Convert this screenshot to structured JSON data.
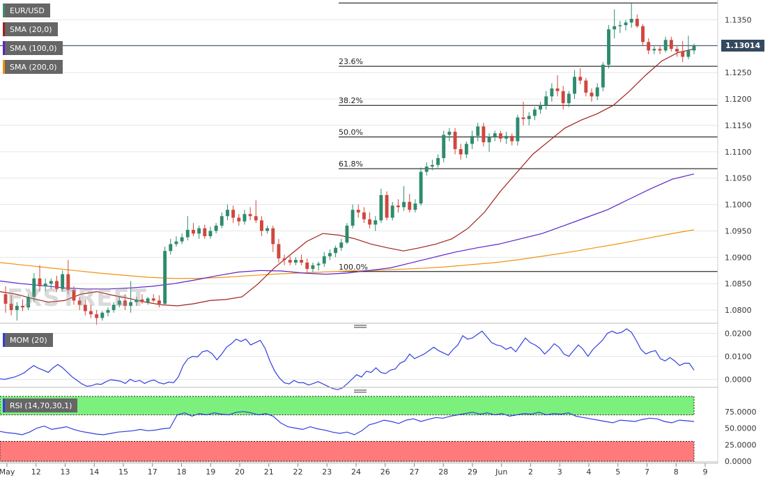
{
  "symbol": "EUR/USD",
  "watermark": "FXSTREET",
  "current_price_label": "1.13014",
  "indicators": {
    "sma20": {
      "label": "SMA (20,0)",
      "color": "#a0201b"
    },
    "sma100": {
      "label": "SMA (100,0)",
      "color": "#5b22c9"
    },
    "sma200": {
      "label": "SMA (200,0)",
      "color": "#f2910e"
    },
    "mom": {
      "label": "MOM (20)",
      "color": "#2f3fe0"
    },
    "rsi": {
      "label": "RSI (14,70,30,1)",
      "color": "#2f3fe0"
    }
  },
  "colors": {
    "up": "#2e8b6e",
    "down": "#d0473d",
    "rsi_overbought_zone": "#7cf07c",
    "rsi_oversold_zone": "#ff7b7b"
  },
  "x_axis_labels": [
    "May",
    "12",
    "13",
    "14",
    "15",
    "17",
    "18",
    "19",
    "20",
    "21",
    "22",
    "23",
    "24",
    "26",
    "27",
    "28",
    "29",
    "Jun",
    "2",
    "3",
    "4",
    "5",
    "7",
    "8",
    "9"
  ],
  "chart_data": [
    {
      "type": "candlestick",
      "title": "EUR/USD",
      "y_ticks": [
        "1.1350",
        "1.1300",
        "1.1250",
        "1.1200",
        "1.1150",
        "1.1100",
        "1.1050",
        "1.1000",
        "1.0950",
        "1.0900",
        "1.0850",
        "1.0800"
      ],
      "ylim": [
        1.0775,
        1.1385
      ],
      "fibonacci": [
        {
          "label": "23.6%",
          "value": 1.1262
        },
        {
          "label": "38.2%",
          "value": 1.1188
        },
        {
          "label": "50.0%",
          "value": 1.1128
        },
        {
          "label": "61.8%",
          "value": 1.1068
        },
        {
          "label": "100.0%",
          "value": 1.0873
        }
      ],
      "fib_top": 1.1382,
      "last_price": 1.13014,
      "ohlc": [
        [
          1.083,
          1.0845,
          1.0795,
          1.0812
        ],
        [
          1.0812,
          1.0828,
          1.079,
          1.08
        ],
        [
          1.08,
          1.0815,
          1.078,
          1.0808
        ],
        [
          1.0808,
          1.082,
          1.0798,
          1.0805
        ],
        [
          1.0805,
          1.083,
          1.08,
          1.0825
        ],
        [
          1.0825,
          1.087,
          1.0815,
          1.086
        ],
        [
          1.086,
          1.0885,
          1.0835,
          1.0845
        ],
        [
          1.0845,
          1.086,
          1.0835,
          1.085
        ],
        [
          1.085,
          1.086,
          1.084,
          1.0855
        ],
        [
          1.0855,
          1.0865,
          1.0835,
          1.084
        ],
        [
          1.084,
          1.0875,
          1.0835,
          1.0868
        ],
        [
          1.0868,
          1.0895,
          1.083,
          1.0838
        ],
        [
          1.0838,
          1.0845,
          1.081,
          1.0818
        ],
        [
          1.0818,
          1.0825,
          1.08,
          1.081
        ],
        [
          1.081,
          1.082,
          1.079,
          1.0798
        ],
        [
          1.0798,
          1.081,
          1.0785,
          1.0792
        ],
        [
          1.0792,
          1.08,
          1.0772,
          1.0785
        ],
        [
          1.0785,
          1.0798,
          1.078,
          1.0795
        ],
        [
          1.0795,
          1.0805,
          1.0788,
          1.08
        ],
        [
          1.08,
          1.0815,
          1.0795,
          1.081
        ],
        [
          1.081,
          1.0825,
          1.0805,
          1.0818
        ],
        [
          1.0818,
          1.083,
          1.08,
          1.0808
        ],
        [
          1.0808,
          1.0855,
          1.0795,
          1.0815
        ],
        [
          1.0815,
          1.0825,
          1.0808,
          1.082
        ],
        [
          1.082,
          1.083,
          1.0812,
          1.0815
        ],
        [
          1.0815,
          1.0825,
          1.081,
          1.0822
        ],
        [
          1.0822,
          1.083,
          1.0815,
          1.0818
        ],
        [
          1.0818,
          1.0828,
          1.0805,
          1.0812
        ],
        [
          1.0812,
          1.092,
          1.081,
          1.0912
        ],
        [
          1.0912,
          1.0935,
          1.0905,
          1.0925
        ],
        [
          1.0925,
          1.094,
          1.092,
          1.093
        ],
        [
          1.093,
          1.0945,
          1.0925,
          1.0938
        ],
        [
          1.0938,
          1.0978,
          1.0932,
          1.0952
        ],
        [
          1.0952,
          1.0965,
          1.094,
          1.0945
        ],
        [
          1.0945,
          1.096,
          1.0935,
          1.0955
        ],
        [
          1.0955,
          1.0962,
          1.0935,
          1.094
        ],
        [
          1.094,
          1.0958,
          1.0935,
          1.095
        ],
        [
          1.095,
          1.0965,
          1.0945,
          1.096
        ],
        [
          1.096,
          1.0985,
          1.0955,
          1.0978
        ],
        [
          1.0978,
          1.1,
          1.097,
          1.099
        ],
        [
          1.099,
          1.0998,
          1.0965,
          1.0975
        ],
        [
          1.0975,
          1.0982,
          1.096,
          1.0968
        ],
        [
          1.0968,
          1.099,
          1.0962,
          1.0982
        ],
        [
          1.0982,
          1.0995,
          1.097,
          1.0978
        ],
        [
          1.0978,
          1.1008,
          1.0965,
          1.097
        ],
        [
          1.097,
          1.0978,
          1.094,
          1.095
        ],
        [
          1.095,
          1.096,
          1.0945,
          1.0955
        ],
        [
          1.0955,
          1.096,
          1.091,
          1.0925
        ],
        [
          1.0925,
          1.0935,
          1.089,
          1.0898
        ],
        [
          1.0898,
          1.0905,
          1.0885,
          1.0895
        ],
        [
          1.0895,
          1.0902,
          1.0885,
          1.089
        ],
        [
          1.089,
          1.09,
          1.0885,
          1.0895
        ],
        [
          1.0895,
          1.0905,
          1.0885,
          1.089
        ],
        [
          1.089,
          1.0898,
          1.0872,
          1.0878
        ],
        [
          1.0878,
          1.089,
          1.0872,
          1.0885
        ],
        [
          1.0885,
          1.0892,
          1.0875,
          1.0888
        ],
        [
          1.0888,
          1.091,
          1.0882,
          1.0902
        ],
        [
          1.0902,
          1.0915,
          1.0895,
          1.0908
        ],
        [
          1.0908,
          1.0922,
          1.09,
          1.0918
        ],
        [
          1.0918,
          1.0935,
          1.0912,
          1.0928
        ],
        [
          1.0928,
          1.0965,
          1.0925,
          1.096
        ],
        [
          1.096,
          1.1,
          1.0955,
          1.099
        ],
        [
          1.099,
          1.1,
          1.0975,
          1.0985
        ],
        [
          1.0985,
          1.0995,
          1.0965,
          1.0972
        ],
        [
          1.0972,
          1.0985,
          1.0955,
          1.0962
        ],
        [
          1.0962,
          1.0978,
          1.095,
          1.097
        ],
        [
          1.097,
          1.103,
          1.0965,
          1.1018
        ],
        [
          1.1018,
          1.1025,
          1.097,
          1.0975
        ],
        [
          1.0975,
          1.1005,
          1.097,
          1.0998
        ],
        [
          1.0998,
          1.101,
          1.0985,
          1.0995
        ],
        [
          1.0995,
          1.1035,
          1.0988,
          1.1005
        ],
        [
          1.1005,
          1.102,
          1.0985,
          1.099
        ],
        [
          1.099,
          1.101,
          1.0985,
          1.1002
        ],
        [
          1.1002,
          1.107,
          1.0998,
          1.1062
        ],
        [
          1.1062,
          1.108,
          1.1055,
          1.1072
        ],
        [
          1.1072,
          1.1085,
          1.1065,
          1.1075
        ],
        [
          1.1075,
          1.1095,
          1.107,
          1.1088
        ],
        [
          1.1088,
          1.114,
          1.108,
          1.1132
        ],
        [
          1.1132,
          1.1145,
          1.112,
          1.1138
        ],
        [
          1.1138,
          1.1145,
          1.1095,
          1.1105
        ],
        [
          1.1105,
          1.1115,
          1.1085,
          1.1095
        ],
        [
          1.1095,
          1.112,
          1.1088,
          1.1115
        ],
        [
          1.1115,
          1.114,
          1.1105,
          1.113
        ],
        [
          1.113,
          1.1155,
          1.112,
          1.1148
        ],
        [
          1.1148,
          1.1155,
          1.111,
          1.1118
        ],
        [
          1.1118,
          1.1135,
          1.11,
          1.1128
        ],
        [
          1.1128,
          1.114,
          1.112,
          1.1135
        ],
        [
          1.1135,
          1.114,
          1.1118,
          1.1125
        ],
        [
          1.1125,
          1.1138,
          1.1115,
          1.113
        ],
        [
          1.113,
          1.1135,
          1.1112,
          1.112
        ],
        [
          1.112,
          1.117,
          1.1112,
          1.1165
        ],
        [
          1.1165,
          1.1195,
          1.115,
          1.1162
        ],
        [
          1.1162,
          1.1175,
          1.115,
          1.1168
        ],
        [
          1.1168,
          1.1185,
          1.116,
          1.118
        ],
        [
          1.118,
          1.1195,
          1.1172,
          1.1188
        ],
        [
          1.1188,
          1.1215,
          1.118,
          1.1205
        ],
        [
          1.1205,
          1.123,
          1.1195,
          1.122
        ],
        [
          1.122,
          1.1245,
          1.1205,
          1.1215
        ],
        [
          1.1215,
          1.1225,
          1.118,
          1.1192
        ],
        [
          1.1192,
          1.1215,
          1.1185,
          1.121
        ],
        [
          1.121,
          1.1255,
          1.12,
          1.1242
        ],
        [
          1.1242,
          1.1258,
          1.1228,
          1.1235
        ],
        [
          1.1235,
          1.124,
          1.1205,
          1.1212
        ],
        [
          1.1212,
          1.122,
          1.1195,
          1.1205
        ],
        [
          1.1205,
          1.123,
          1.1198,
          1.1222
        ],
        [
          1.1222,
          1.127,
          1.1215,
          1.1265
        ],
        [
          1.1265,
          1.134,
          1.1258,
          1.1332
        ],
        [
          1.1332,
          1.137,
          1.1315,
          1.1338
        ],
        [
          1.1338,
          1.1348,
          1.1325,
          1.134
        ],
        [
          1.134,
          1.135,
          1.133,
          1.1345
        ],
        [
          1.1345,
          1.1382,
          1.1335,
          1.1352
        ],
        [
          1.1352,
          1.136,
          1.1335,
          1.1338
        ],
        [
          1.1338,
          1.1342,
          1.1302,
          1.1308
        ],
        [
          1.1308,
          1.1315,
          1.1285,
          1.1292
        ],
        [
          1.1292,
          1.13,
          1.1285,
          1.1295
        ],
        [
          1.1295,
          1.13,
          1.1285,
          1.1292
        ],
        [
          1.1292,
          1.1318,
          1.1288,
          1.1312
        ],
        [
          1.1312,
          1.1318,
          1.129,
          1.1295
        ],
        [
          1.1295,
          1.13,
          1.128,
          1.129
        ],
        [
          1.129,
          1.131,
          1.127,
          1.128
        ],
        [
          1.128,
          1.132,
          1.1275,
          1.1292
        ],
        [
          1.1292,
          1.1305,
          1.1285,
          1.1301
        ]
      ],
      "sma20": [
        1.0835,
        1.083,
        1.0822,
        1.0815,
        1.0818,
        1.083,
        1.0835,
        1.0828,
        1.0822,
        1.0815,
        1.081,
        1.0808,
        1.0812,
        1.0818,
        1.082,
        1.0825,
        1.085,
        1.088,
        1.0905,
        1.093,
        1.0945,
        1.0942,
        1.0935,
        1.0925,
        1.0918,
        1.0912,
        1.0918,
        1.0925,
        1.0935,
        1.0955,
        1.0985,
        1.1025,
        1.106,
        1.1095,
        1.112,
        1.1145,
        1.116,
        1.1172,
        1.1188,
        1.1215,
        1.1245,
        1.1272,
        1.1288,
        1.1295
      ],
      "sma100": [
        1.0855,
        1.085,
        1.0846,
        1.0842,
        1.084,
        1.084,
        1.0842,
        1.0845,
        1.085,
        1.0857,
        1.0865,
        1.0872,
        1.0875,
        1.0874,
        1.087,
        1.0868,
        1.087,
        1.0875,
        1.088,
        1.089,
        1.09,
        1.091,
        1.0918,
        1.0925,
        1.0935,
        1.0945,
        1.096,
        1.0975,
        1.099,
        1.101,
        1.103,
        1.1048,
        1.1058
      ],
      "sma200": [
        1.089,
        1.0885,
        1.088,
        1.0875,
        1.087,
        1.0866,
        1.0862,
        1.086,
        1.086,
        1.0862,
        1.0865,
        1.0868,
        1.087,
        1.0872,
        1.0874,
        1.0875,
        1.0877,
        1.0879,
        1.0882,
        1.0886,
        1.089,
        1.0896,
        1.0903,
        1.091,
        1.0918,
        1.0926,
        1.0935,
        1.0944,
        1.0952
      ],
      "last_label": "1.13014"
    },
    {
      "type": "line",
      "title": "MOM (20)",
      "y_ticks": [
        "0.0200",
        "0.0100",
        "0.0000"
      ],
      "ylim": [
        -0.0035,
        0.022
      ],
      "values": [
        0.0002,
        0.0,
        0.0005,
        0.001,
        0.0018,
        0.0028,
        0.0045,
        0.006,
        0.0048,
        0.004,
        0.003,
        0.005,
        0.0065,
        0.005,
        0.003,
        0.001,
        -0.0005,
        -0.002,
        -0.003,
        -0.0028,
        -0.002,
        -0.0022,
        -0.001,
        -0.0002,
        -0.0005,
        -0.0008,
        -0.0018,
        0.0,
        -0.001,
        -0.0005,
        -0.0018,
        -0.0008,
        -0.0003,
        -0.0015,
        -0.002,
        -0.0012,
        -0.0015,
        0.001,
        0.006,
        0.009,
        0.01,
        0.0098,
        0.012,
        0.0125,
        0.0112,
        0.0085,
        0.011,
        0.014,
        0.0155,
        0.0175,
        0.0165,
        0.0175,
        0.015,
        0.016,
        0.017,
        0.0135,
        0.008,
        0.0035,
        0.0005,
        -0.0015,
        -0.002,
        -0.0005,
        -0.0015,
        -0.0015,
        -0.0025,
        -0.0018,
        -0.001,
        -0.002,
        -0.003,
        -0.004,
        -0.0045,
        -0.0038,
        -0.002,
        0.0,
        0.002,
        0.001,
        0.0035,
        0.003,
        0.005,
        0.003,
        0.0025,
        0.004,
        0.0045,
        0.007,
        0.008,
        0.011,
        0.009,
        0.01,
        0.011,
        0.0125,
        0.014,
        0.0125,
        0.0115,
        0.0105,
        0.013,
        0.015,
        0.019,
        0.0175,
        0.018,
        0.0195,
        0.021,
        0.0185,
        0.016,
        0.015,
        0.0145,
        0.013,
        0.014,
        0.012,
        0.015,
        0.018,
        0.016,
        0.015,
        0.0135,
        0.011,
        0.013,
        0.0155,
        0.014,
        0.011,
        0.01,
        0.0125,
        0.015,
        0.013,
        0.01,
        0.013,
        0.015,
        0.017,
        0.02,
        0.021,
        0.02,
        0.0205,
        0.022,
        0.0205,
        0.017,
        0.013,
        0.011,
        0.012,
        0.0125,
        0.009,
        0.008,
        0.0095,
        0.008,
        0.006,
        0.007,
        0.007,
        0.004
      ]
    },
    {
      "type": "line",
      "title": "RSI (14,70,30,1)",
      "y_ticks": [
        "75.0000",
        "50.0000",
        "25.0000",
        "0.0000"
      ],
      "ylim": [
        0,
        100
      ],
      "overbought": 70,
      "oversold": 30,
      "values": [
        45,
        43,
        42,
        40,
        44,
        50,
        53,
        48,
        50,
        52,
        48,
        45,
        43,
        41,
        40,
        42,
        44,
        45,
        46,
        48,
        46,
        47,
        49,
        50,
        70,
        73,
        68,
        72,
        70,
        73,
        71,
        70,
        74,
        75,
        73,
        70,
        72,
        68,
        58,
        52,
        50,
        48,
        52,
        49,
        47,
        44,
        42,
        44,
        40,
        46,
        55,
        58,
        62,
        60,
        57,
        62,
        64,
        60,
        63,
        66,
        65,
        68,
        70,
        72,
        74,
        71,
        73,
        70,
        72,
        68,
        70,
        72,
        71,
        74,
        70,
        72,
        71,
        73,
        68,
        66,
        64,
        62,
        60,
        58,
        62,
        61,
        60,
        63,
        65,
        64,
        60,
        58,
        62,
        61,
        60
      ]
    }
  ]
}
